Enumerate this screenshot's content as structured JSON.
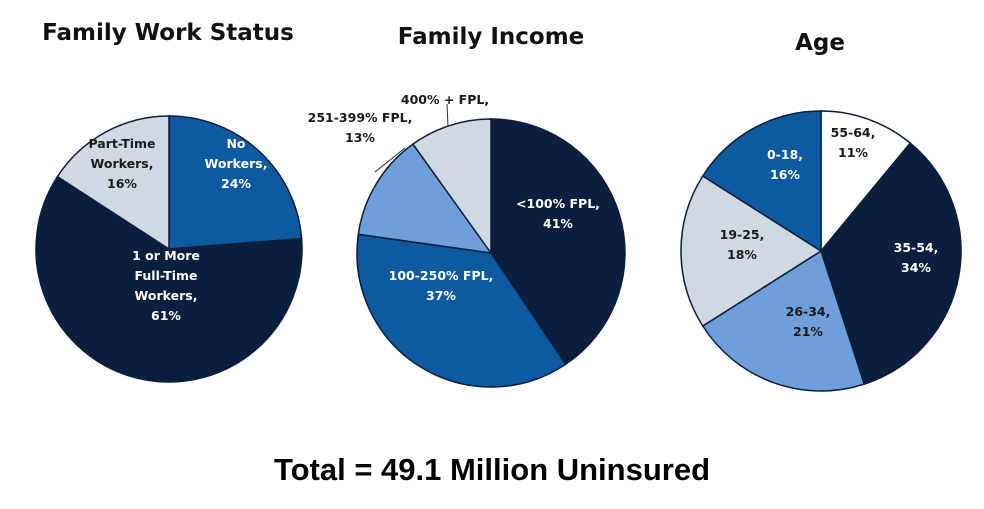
{
  "colors": {
    "dark_navy": "#0a1f3d",
    "medium_blue": "#0e5aa0",
    "light_blue": "#6f9fd8",
    "pale_gray": "#d0d8e2",
    "white": "#ffffff",
    "outline": "#0a1f3d"
  },
  "chart_data": [
    {
      "type": "pie",
      "title": "Family Work Status",
      "slices": [
        {
          "label": [
            "No",
            "Workers,",
            "24%"
          ],
          "value": 24,
          "color": "#0e5aa0",
          "text_color": "#ffffff"
        },
        {
          "label": [
            "1 or More",
            "Full-Time",
            "Workers,",
            "61%"
          ],
          "value": 61,
          "color": "#0a1f3d",
          "text_color": "#ffffff"
        },
        {
          "label": [
            "Part-Time",
            "Workers,",
            "16%"
          ],
          "value": 16,
          "color": "#d0d8e2",
          "text_color": "#1a1a1a"
        }
      ]
    },
    {
      "type": "pie",
      "title": "Family Income",
      "slices": [
        {
          "label": [
            "<100% FPL,",
            "41%"
          ],
          "value": 41,
          "color": "#0a1f3d",
          "text_color": "#ffffff"
        },
        {
          "label": [
            "100-250% FPL,",
            "37%"
          ],
          "value": 37,
          "color": "#0e5aa0",
          "text_color": "#ffffff"
        },
        {
          "label": [
            "251-399% FPL,",
            "13%"
          ],
          "value": 13,
          "color": "#6f9fd8",
          "text_color": "#1a1a1a",
          "outside": true
        },
        {
          "label": [
            "400% + FPL,"
          ],
          "value": 10,
          "color": "#d0d8e2",
          "text_color": "#1a1a1a",
          "outside": true
        }
      ]
    },
    {
      "type": "pie",
      "title": "Age",
      "slices": [
        {
          "label": [
            "55-64,",
            "11%"
          ],
          "value": 11,
          "color": "#ffffff",
          "text_color": "#1a1a1a"
        },
        {
          "label": [
            "35-54,",
            "34%"
          ],
          "value": 34,
          "color": "#0a1f3d",
          "text_color": "#ffffff"
        },
        {
          "label": [
            "26-34,",
            "21%"
          ],
          "value": 21,
          "color": "#6f9fd8",
          "text_color": "#1a1a1a"
        },
        {
          "label": [
            "19-25,",
            "18%"
          ],
          "value": 18,
          "color": "#d0d8e2",
          "text_color": "#1a1a1a"
        },
        {
          "label": [
            "0-18,",
            "16%"
          ],
          "value": 16,
          "color": "#0e5aa0",
          "text_color": "#ffffff"
        }
      ]
    }
  ],
  "footer": {
    "total_text": "Total = 49.1 Million Uninsured"
  }
}
